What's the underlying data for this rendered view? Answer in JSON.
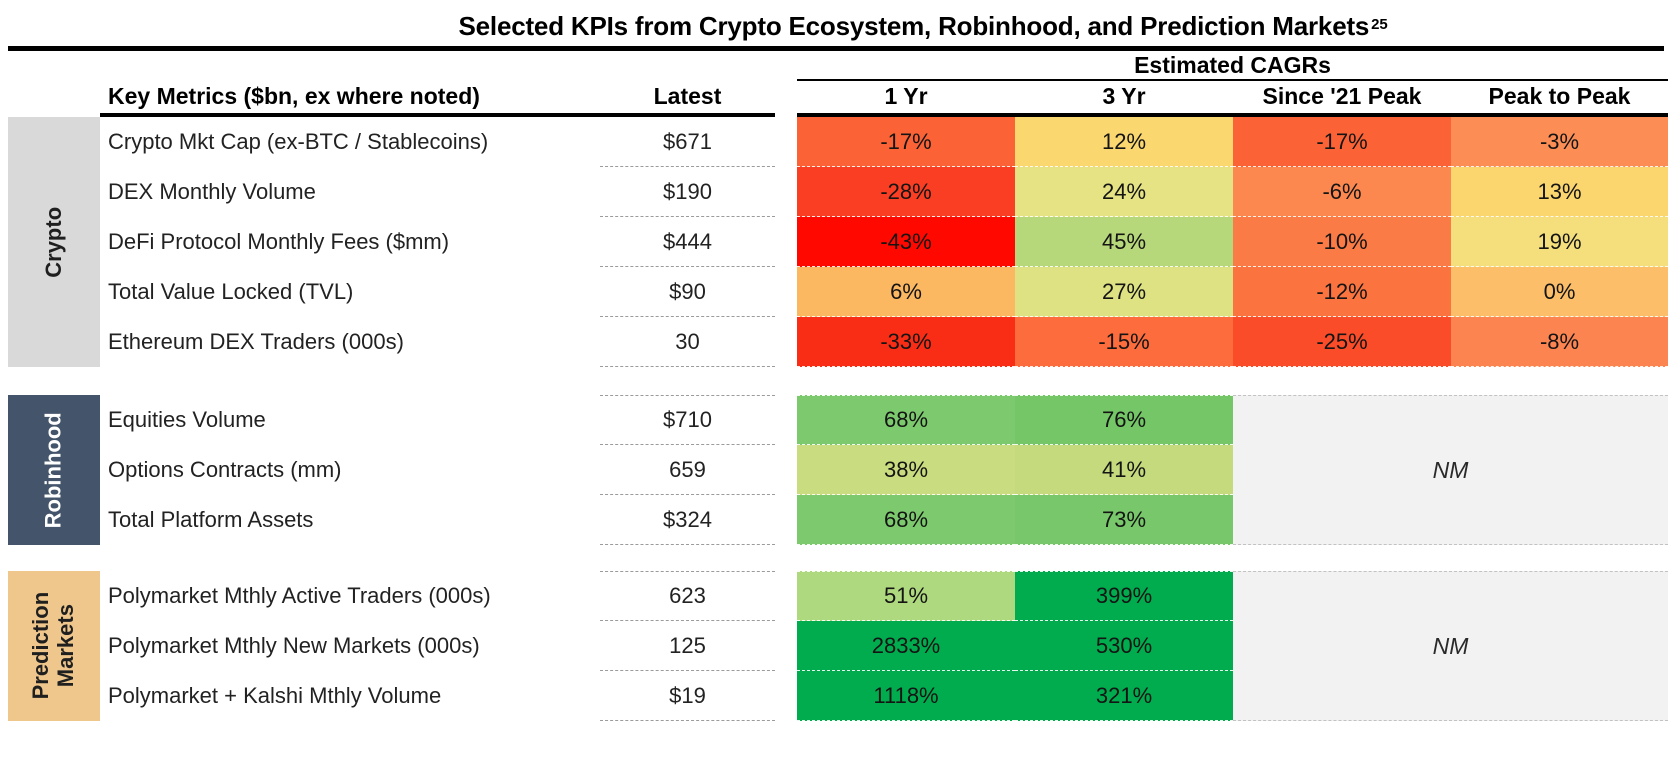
{
  "title": {
    "text": "Selected KPIs from Crypto Ecosystem, Robinhood, and Prediction Markets",
    "superscript": "25"
  },
  "header": {
    "metrics_label": "Key Metrics ($bn, ex where noted)",
    "latest_label": "Latest",
    "cagr_group_label": "Estimated CAGRs",
    "cagr_columns": [
      "1 Yr",
      "3 Yr",
      "Since '21 Peak",
      "Peak to Peak"
    ]
  },
  "colors": {
    "nm_bg": "#F2F2F2",
    "rule": "#000000"
  },
  "groups": [
    {
      "label": "Crypto",
      "label_bg": "#D9D9D9",
      "label_color": "#1f1f1f",
      "rows": [
        {
          "metric": "Crypto Mkt Cap (ex-BTC / Stablecoins)",
          "latest": "$671",
          "cells": [
            {
              "text": "-17%",
              "bg": "#FB6336"
            },
            {
              "text": "12%",
              "bg": "#FBD76F"
            },
            {
              "text": "-17%",
              "bg": "#FB6336"
            },
            {
              "text": "-3%",
              "bg": "#FC8E55"
            }
          ]
        },
        {
          "metric": "DEX Monthly Volume",
          "latest": "$190",
          "cells": [
            {
              "text": "-28%",
              "bg": "#FA3E23"
            },
            {
              "text": "24%",
              "bg": "#E5E384"
            },
            {
              "text": "-6%",
              "bg": "#FC8850"
            },
            {
              "text": "13%",
              "bg": "#FBD56E"
            }
          ]
        },
        {
          "metric": "DeFi Protocol Monthly Fees ($mm)",
          "latest": "$444",
          "cells": [
            {
              "text": "-43%",
              "bg": "#FE0800"
            },
            {
              "text": "45%",
              "bg": "#B7D87A"
            },
            {
              "text": "-10%",
              "bg": "#FB7B46"
            },
            {
              "text": "19%",
              "bg": "#F5DF7D"
            }
          ]
        },
        {
          "metric": "Total Value Locked (TVL)",
          "latest": "$90",
          "cells": [
            {
              "text": "6%",
              "bg": "#FCB761"
            },
            {
              "text": "27%",
              "bg": "#DEE282"
            },
            {
              "text": "-12%",
              "bg": "#FB7440"
            },
            {
              "text": "0%",
              "bg": "#FCBE68"
            }
          ]
        },
        {
          "metric": "Ethereum DEX Traders (000s)",
          "latest": "30",
          "cells": [
            {
              "text": "-33%",
              "bg": "#F92D16"
            },
            {
              "text": "-15%",
              "bg": "#FC6C3C"
            },
            {
              "text": "-25%",
              "bg": "#FA4C29"
            },
            {
              "text": "-8%",
              "bg": "#FC8450"
            }
          ]
        }
      ]
    },
    {
      "label": "Robinhood",
      "label_bg": "#44546A",
      "label_color": "#FFFFFF",
      "nm": "NM",
      "rows": [
        {
          "metric": "Equities Volume",
          "latest": "$710",
          "cells": [
            {
              "text": "68%",
              "bg": "#7DC96E"
            },
            {
              "text": "76%",
              "bg": "#74C667"
            }
          ]
        },
        {
          "metric": "Options Contracts (mm)",
          "latest": "659",
          "cells": [
            {
              "text": "38%",
              "bg": "#C9DC7F"
            },
            {
              "text": "41%",
              "bg": "#C4DA7D"
            }
          ]
        },
        {
          "metric": "Total Platform Assets",
          "latest": "$324",
          "cells": [
            {
              "text": "68%",
              "bg": "#7DC96E"
            },
            {
              "text": "73%",
              "bg": "#78C76A"
            }
          ]
        }
      ]
    },
    {
      "label": "Prediction Markets",
      "label_bg": "#EFC78C",
      "label_color": "#1f1f1f",
      "nm": "NM",
      "rows": [
        {
          "metric": "Polymarket Mthly Active Traders (000s)",
          "latest": "623",
          "cells": [
            {
              "text": "51%",
              "bg": "#AED97E"
            },
            {
              "text": "399%",
              "bg": "#00AC4E"
            }
          ]
        },
        {
          "metric": "Polymarket Mthly New Markets (000s)",
          "latest": "125",
          "cells": [
            {
              "text": "2833%",
              "bg": "#00AC4E"
            },
            {
              "text": "530%",
              "bg": "#00AC4E"
            }
          ]
        },
        {
          "metric": "Polymarket + Kalshi Mthly Volume",
          "latest": "$19",
          "cells": [
            {
              "text": "1118%",
              "bg": "#00AC4E"
            },
            {
              "text": "321%",
              "bg": "#00AC4E"
            }
          ]
        }
      ]
    }
  ]
}
